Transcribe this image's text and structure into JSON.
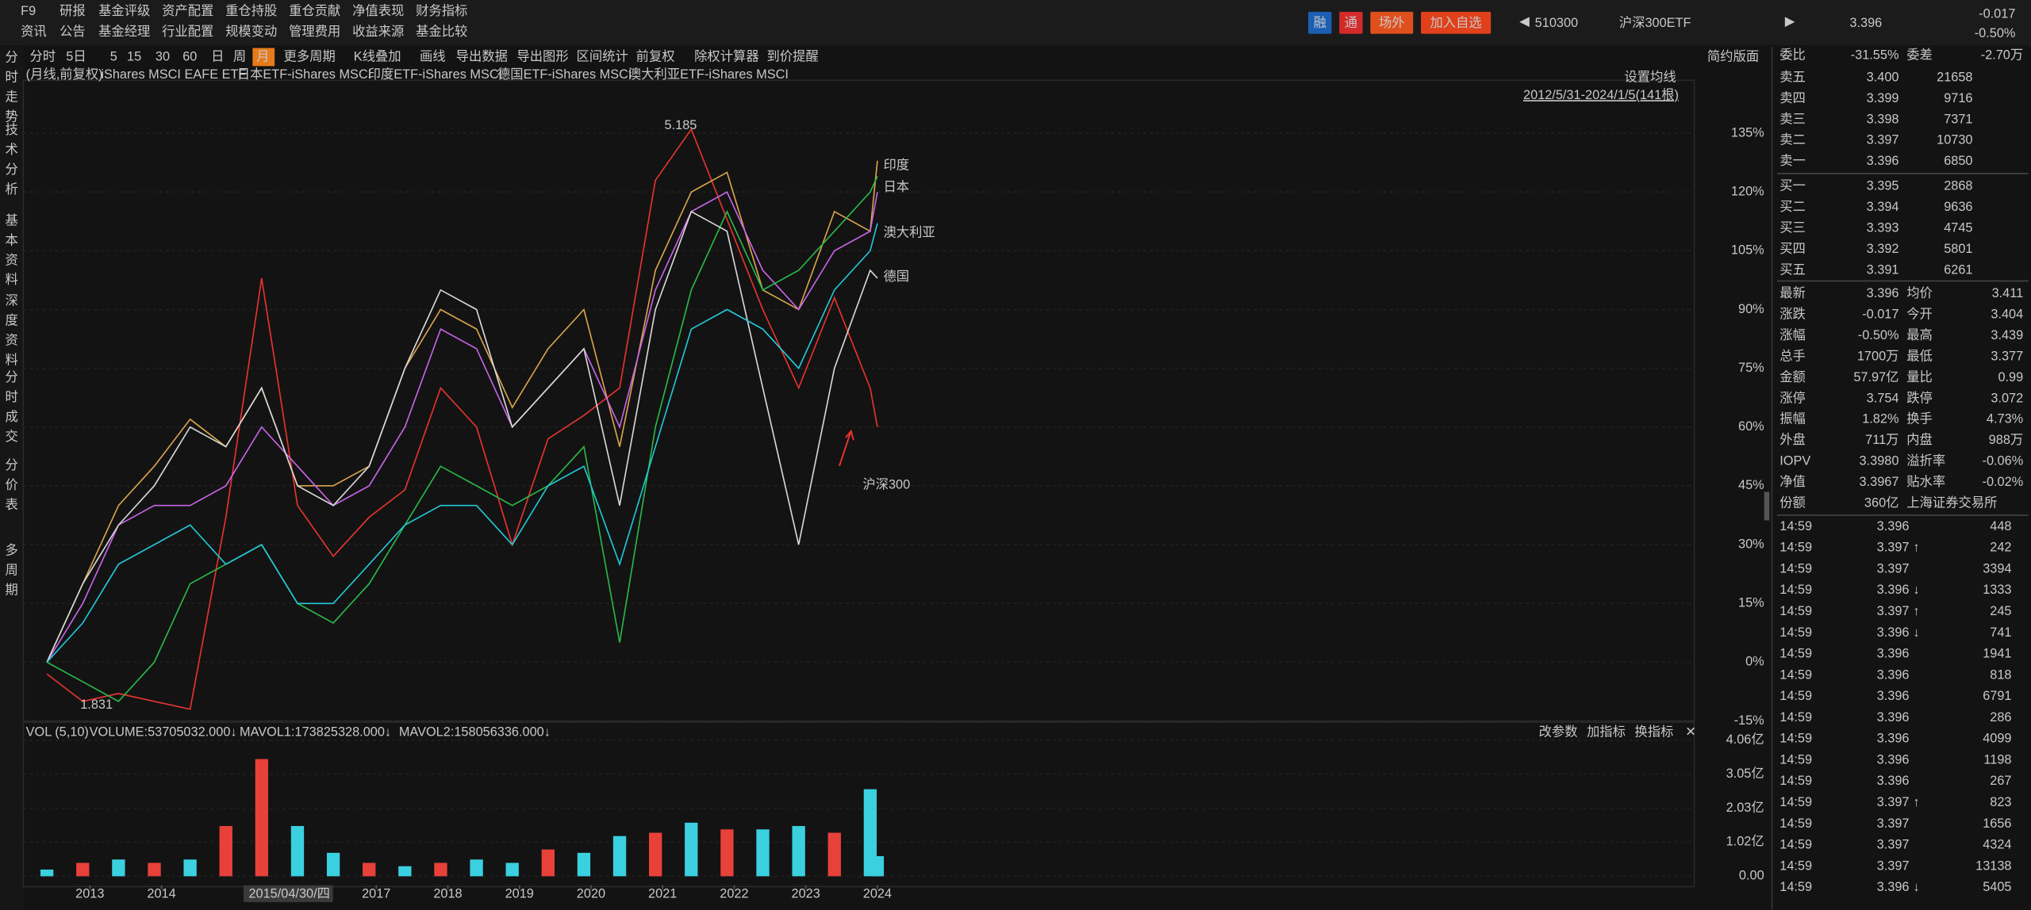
{
  "top_menu": {
    "row1": [
      "F9",
      "研报",
      "基金评级",
      "资产配置",
      "重仓持股",
      "重仓贡献",
      "净值表现",
      "财务指标"
    ],
    "row2": [
      "资讯",
      "公告",
      "基金经理",
      "行业配置",
      "规模变动",
      "管理费用",
      "收益来源",
      "基金比较"
    ]
  },
  "header": {
    "buttons": [
      "融",
      "通",
      "场外",
      "加入自选"
    ],
    "code": "510300",
    "name": "沪深300ETF",
    "price": "3.396",
    "change": "-0.017",
    "change_pct": "-0.50%"
  },
  "toolbar": {
    "items": [
      "分时",
      "5日",
      "5",
      "15",
      "30",
      "60",
      "日",
      "周",
      "月",
      "更多周期",
      "K线叠加",
      "画线",
      "导出数据",
      "导出图形",
      "区间统计",
      "前复权",
      "除权计算器",
      "到价提醒"
    ],
    "right": "简约版面"
  },
  "sidebar": [
    "分时走势",
    "技术分析",
    "基本资料",
    "深度资料",
    "分时成交",
    "分价表",
    "多周期"
  ],
  "chart_data": [
    {
      "type": "line",
      "period_label": "(月线,前复权)",
      "ma_setting": "设置均线",
      "range_label": "2012/5/31-2024/1/5(141根)",
      "high_label": "5.185",
      "low_label": "1.831",
      "x": [
        2012.4,
        2012.9,
        2013.4,
        2013.9,
        2014.4,
        2014.9,
        2015.4,
        2015.9,
        2016.4,
        2016.9,
        2017.4,
        2017.9,
        2018.4,
        2018.9,
        2019.4,
        2019.9,
        2020.4,
        2020.9,
        2021.4,
        2021.9,
        2022.4,
        2022.9,
        2023.4,
        2023.9,
        2024.0
      ],
      "xlim": [
        2012.07,
        2035.41
      ],
      "ylim": [
        -15,
        148.5
      ],
      "yticks": [
        {
          "value": 135,
          "label": "135%"
        },
        {
          "value": 120,
          "label": "120%"
        },
        {
          "value": 105,
          "label": "105%"
        },
        {
          "value": 90,
          "label": "90%"
        },
        {
          "value": 75,
          "label": "75%"
        },
        {
          "value": 60,
          "label": "60%"
        },
        {
          "value": 45,
          "label": "45%"
        },
        {
          "value": 30,
          "label": "30%"
        },
        {
          "value": 15,
          "label": "15%"
        },
        {
          "value": 0,
          "label": "0%"
        },
        {
          "value": -15,
          "label": "-15%"
        }
      ],
      "series": [
        {
          "name": "沪深300",
          "color": "#e8342f",
          "values": [
            -3,
            -10,
            -8,
            -10,
            -12,
            37,
            98,
            40,
            27,
            37,
            44,
            70,
            60,
            30,
            57,
            63,
            70,
            123,
            136,
            113,
            90,
            70,
            93,
            70,
            60
          ]
        },
        {
          "name": "iShares MSCI EAFE ETF",
          "color": "#d9a54a",
          "values": [
            0,
            20,
            40,
            50,
            62,
            55,
            70,
            45,
            45,
            50,
            75,
            90,
            85,
            65,
            80,
            90,
            55,
            100,
            120,
            125,
            95,
            90,
            115,
            110,
            128
          ]
        },
        {
          "name": "日本ETF-iShares MSCI",
          "color": "#c864e8",
          "values": [
            0,
            15,
            35,
            40,
            40,
            45,
            60,
            50,
            40,
            45,
            60,
            85,
            80,
            60,
            70,
            80,
            60,
            95,
            115,
            120,
            100,
            90,
            105,
            110,
            120
          ]
        },
        {
          "name": "印度ETF-iShares MSCI",
          "color": "#2ab84a",
          "values": [
            0,
            -5,
            -10,
            0,
            20,
            25,
            30,
            15,
            10,
            20,
            35,
            50,
            45,
            40,
            45,
            55,
            5,
            60,
            95,
            115,
            95,
            100,
            110,
            120,
            124
          ]
        },
        {
          "name": "德国ETF-iShares MSCI",
          "color": "#d8d8d8",
          "values": [
            0,
            20,
            35,
            45,
            60,
            55,
            70,
            45,
            40,
            50,
            75,
            95,
            90,
            60,
            70,
            80,
            40,
            90,
            115,
            110,
            70,
            30,
            75,
            100,
            98
          ]
        },
        {
          "name": "澳大利亚ETF-iShares MSCI",
          "color": "#22c8d8",
          "values": [
            0,
            10,
            25,
            30,
            35,
            25,
            30,
            15,
            15,
            25,
            35,
            40,
            40,
            30,
            45,
            50,
            25,
            55,
            85,
            90,
            85,
            75,
            95,
            105,
            112
          ]
        }
      ],
      "annotations": [
        {
          "text": "印度"
        },
        {
          "text": "日本"
        },
        {
          "text": "澳大利亚"
        },
        {
          "text": "德国"
        }
      ]
    },
    {
      "type": "bar",
      "indicator": "VOL (5,10)",
      "readouts": [
        {
          "text": "VOLUME:53705032.000↓",
          "color": "#e0e0e0"
        },
        {
          "text": "MAVOL1:173825328.000↓",
          "color": "#d9a54a"
        },
        {
          "text": "MAVOL2:158056336.000↓",
          "color": "#c864e8"
        }
      ],
      "buttons": [
        "改参数",
        "加指标",
        "换指标"
      ],
      "cursor_label": "2015/04/30/四",
      "x": [
        2012.4,
        2012.9,
        2013.4,
        2013.9,
        2014.4,
        2014.9,
        2015.4,
        2015.9,
        2016.4,
        2016.9,
        2017.4,
        2017.9,
        2018.4,
        2018.9,
        2019.4,
        2019.9,
        2020.4,
        2020.9,
        2021.4,
        2021.9,
        2022.4,
        2022.9,
        2023.4,
        2023.9,
        2024.0
      ],
      "values": [
        0.2,
        0.4,
        0.5,
        0.4,
        0.5,
        1.5,
        3.5,
        1.5,
        0.7,
        0.4,
        0.3,
        0.4,
        0.5,
        0.4,
        0.8,
        0.7,
        1.2,
        1.3,
        1.6,
        1.4,
        1.4,
        1.5,
        1.3,
        2.6,
        0.6
      ],
      "colors": [
        "#3ad0e0",
        "#e8413a",
        "#3ad0e0",
        "#e8413a",
        "#3ad0e0",
        "#e8413a",
        "#e8413a",
        "#3ad0e0",
        "#3ad0e0",
        "#e8413a",
        "#3ad0e0",
        "#e8413a",
        "#3ad0e0",
        "#3ad0e0",
        "#e8413a",
        "#3ad0e0",
        "#3ad0e0",
        "#e8413a",
        "#3ad0e0",
        "#e8413a",
        "#3ad0e0",
        "#3ad0e0",
        "#e8413a",
        "#3ad0e0",
        "#3ad0e0"
      ],
      "xlim": [
        2012.07,
        2035.41
      ],
      "ylim": [
        0,
        4.29
      ],
      "xticks": [
        2013,
        2014,
        2017,
        2018,
        2019,
        2020,
        2021,
        2022,
        2023,
        2024
      ],
      "yticks": [
        {
          "value": 4.06,
          "label": "4.06亿"
        },
        {
          "value": 3.05,
          "label": "3.05亿"
        },
        {
          "value": 2.03,
          "label": "2.03亿"
        },
        {
          "value": 1.02,
          "label": "1.02亿"
        },
        {
          "value": 0,
          "label": "0.00"
        }
      ]
    }
  ],
  "order_book": {
    "ratio": [
      {
        "label": "委比",
        "value": "-31.55%"
      },
      {
        "label": "委差",
        "value": "-2.70万"
      }
    ],
    "asks": [
      [
        "卖五",
        "3.400",
        "21658"
      ],
      [
        "卖四",
        "3.399",
        "9716"
      ],
      [
        "卖三",
        "3.398",
        "7371"
      ],
      [
        "卖二",
        "3.397",
        "10730"
      ],
      [
        "卖一",
        "3.396",
        "6850"
      ]
    ],
    "bids": [
      [
        "买一",
        "3.395",
        "2868"
      ],
      [
        "买二",
        "3.394",
        "9636"
      ],
      [
        "买三",
        "3.393",
        "4745"
      ],
      [
        "买四",
        "3.392",
        "5801"
      ],
      [
        "买五",
        "3.391",
        "6261"
      ]
    ]
  },
  "stats": [
    [
      {
        "label": "最新",
        "value": "3.396",
        "color": "#2fcf55"
      },
      {
        "label": "均价",
        "value": "3.411",
        "color": "#2fcf55"
      }
    ],
    [
      {
        "label": "涨跌",
        "value": "-0.017",
        "color": "#2fcf55"
      },
      {
        "label": "今开",
        "value": "3.404",
        "color": "#2fcf55"
      }
    ],
    [
      {
        "label": "涨幅",
        "value": "-0.50%",
        "color": "#2fcf55"
      },
      {
        "label": "最高",
        "value": "3.439",
        "color": "#e8413a"
      }
    ],
    [
      {
        "label": "总手",
        "value": "1700万",
        "color": "#e0e0e0"
      },
      {
        "label": "最低",
        "value": "3.377",
        "color": "#2fcf55"
      }
    ],
    [
      {
        "label": "金额",
        "value": "57.97亿",
        "color": "#4aa0f0"
      },
      {
        "label": "量比",
        "value": "0.99",
        "color": "#e0e0e0"
      }
    ],
    [
      {
        "label": "涨停",
        "value": "3.754",
        "color": "#e8413a"
      },
      {
        "label": "跌停",
        "value": "3.072",
        "color": "#2fcf55"
      }
    ],
    [
      {
        "label": "振幅",
        "value": "1.82%",
        "color": "#e0e0e0"
      },
      {
        "label": "换手",
        "value": "4.73%",
        "color": "#e0e0e0"
      }
    ],
    [
      {
        "label": "外盘",
        "value": "711万",
        "color": "#e8413a"
      },
      {
        "label": "内盘",
        "value": "988万",
        "color": "#2fcf55"
      }
    ],
    [
      {
        "label": "IOPV",
        "value": "3.3980",
        "color": "#e0e0e0"
      },
      {
        "label": "溢折率",
        "value": "-0.06%",
        "color": "#e0e0e0"
      }
    ],
    [
      {
        "label": "净值",
        "value": "3.3967",
        "color": "#e0e0e0"
      },
      {
        "label": "贴水率",
        "value": "-0.02%",
        "color": "#e0e0e0"
      }
    ],
    [
      {
        "label": "份额",
        "value": "360亿",
        "color": "#e0e0e0"
      },
      {
        "label": "上海证券交易所"
      }
    ]
  ],
  "trades": [
    {
      "time": "14:59",
      "price": "3.396",
      "volume": "448",
      "color": "#2fcf55"
    },
    {
      "time": "14:59",
      "price": "3.397",
      "arrow": "↑",
      "volume": "242",
      "color": "#e8413a"
    },
    {
      "time": "14:59",
      "price": "3.397",
      "volume": "3394",
      "color": "#e8413a"
    },
    {
      "time": "14:59",
      "price": "3.396",
      "arrow": "↓",
      "volume": "1333",
      "color": "#2fcf55"
    },
    {
      "time": "14:59",
      "price": "3.397",
      "arrow": "↑",
      "volume": "245",
      "color": "#e8413a"
    },
    {
      "time": "14:59",
      "price": "3.396",
      "arrow": "↓",
      "volume": "741",
      "color": "#2fcf55"
    },
    {
      "time": "14:59",
      "price": "3.396",
      "volume": "1941",
      "color": "#2fcf55"
    },
    {
      "time": "14:59",
      "price": "3.396",
      "volume": "818",
      "color": "#2fcf55"
    },
    {
      "time": "14:59",
      "price": "3.396",
      "volume": "6791",
      "color": "#2fcf55"
    },
    {
      "time": "14:59",
      "price": "3.396",
      "volume": "286",
      "color": "#2fcf55"
    },
    {
      "time": "14:59",
      "price": "3.396",
      "volume": "4099",
      "color": "#2fcf55"
    },
    {
      "time": "14:59",
      "price": "3.396",
      "volume": "1198",
      "color": "#2fcf55"
    },
    {
      "time": "14:59",
      "price": "3.396",
      "volume": "267",
      "color": "#2fcf55"
    },
    {
      "time": "14:59",
      "price": "3.397",
      "arrow": "↑",
      "volume": "823",
      "color": "#e8413a"
    },
    {
      "time": "14:59",
      "price": "3.397",
      "volume": "1656",
      "color": "#e8413a"
    },
    {
      "time": "14:59",
      "price": "3.397",
      "volume": "4324",
      "color": "#e8413a"
    },
    {
      "time": "14:59",
      "price": "3.397",
      "volume": "13138",
      "color": "#e8413a"
    },
    {
      "time": "14:59",
      "price": "3.396",
      "arrow": "↓",
      "volume": "5405",
      "color": "#2fcf55"
    }
  ]
}
